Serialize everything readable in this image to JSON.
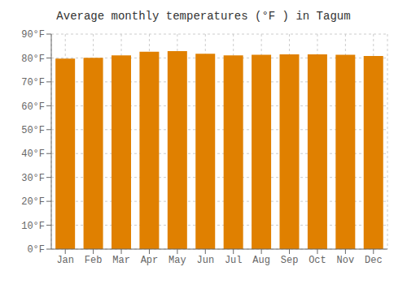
{
  "chart_data": {
    "type": "bar",
    "title": "Average monthly temperatures (°F ) in Tagum",
    "categories": [
      "Jan",
      "Feb",
      "Mar",
      "Apr",
      "May",
      "Jun",
      "Jul",
      "Aug",
      "Sep",
      "Oct",
      "Nov",
      "Dec"
    ],
    "values": [
      79.7,
      80.1,
      81.1,
      82.6,
      82.9,
      81.8,
      81.1,
      81.3,
      81.5,
      81.5,
      81.3,
      80.8
    ],
    "color": "#E08000",
    "ylim": [
      0,
      90
    ],
    "yticks": [
      {
        "value": 0,
        "label": "0°F"
      },
      {
        "value": 10,
        "label": "10°F"
      },
      {
        "value": 20,
        "label": "20°F"
      },
      {
        "value": 30,
        "label": "30°F"
      },
      {
        "value": 40,
        "label": "40°F"
      },
      {
        "value": 50,
        "label": "50°F"
      },
      {
        "value": 60,
        "label": "60°F"
      },
      {
        "value": 70,
        "label": "70°F"
      },
      {
        "value": 80,
        "label": "80°F"
      },
      {
        "value": 90,
        "label": "90°F"
      }
    ],
    "grid": true
  }
}
